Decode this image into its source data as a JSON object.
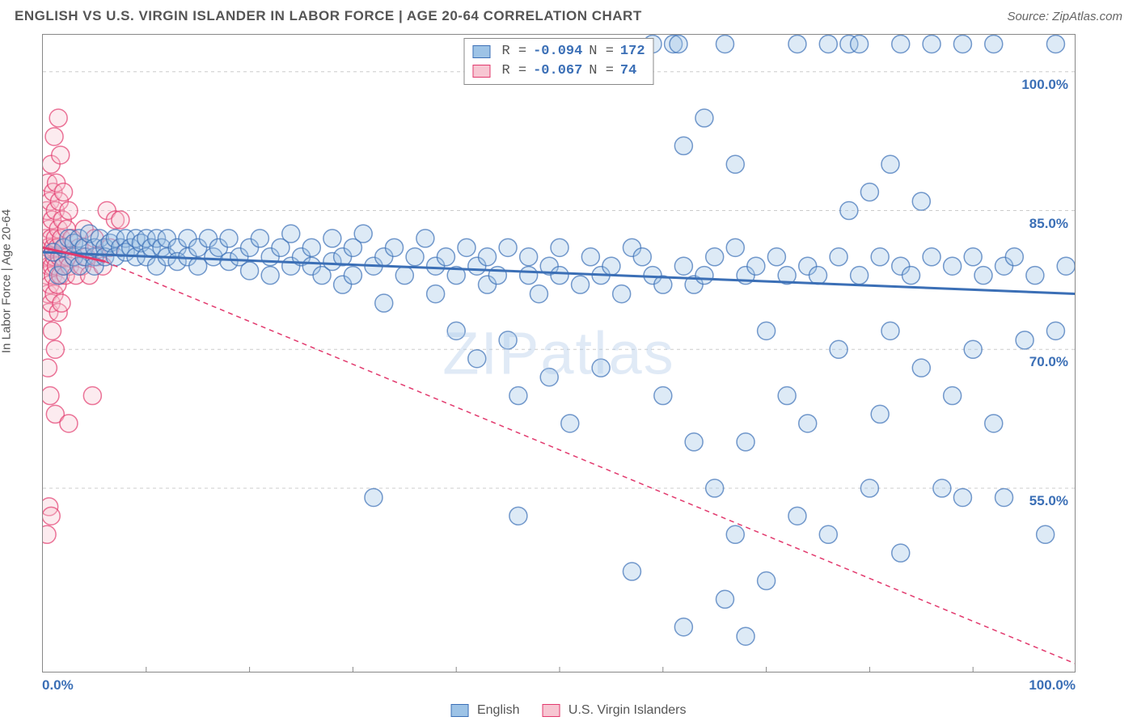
{
  "title": "ENGLISH VS U.S. VIRGIN ISLANDER IN LABOR FORCE | AGE 20-64 CORRELATION CHART",
  "source": "Source: ZipAtlas.com",
  "ylabel": "In Labor Force | Age 20-64",
  "watermark": "ZIPatlas",
  "chart": {
    "type": "scatter",
    "xlim": [
      0,
      100
    ],
    "ylim": [
      35,
      104
    ],
    "background_color": "#ffffff",
    "grid_color": "#cccccc",
    "border_color": "#888888",
    "watermark_color": "#a9c6e8",
    "watermark_opacity": 0.35,
    "yticks": [
      {
        "value": 55.0,
        "label": "55.0%"
      },
      {
        "value": 70.0,
        "label": "70.0%"
      },
      {
        "value": 85.0,
        "label": "85.0%"
      },
      {
        "value": 100.0,
        "label": "100.0%"
      }
    ],
    "xticks_minor": [
      10,
      20,
      30,
      40,
      50,
      60,
      70,
      80,
      90
    ],
    "xtick_labels": [
      {
        "value": 0,
        "label": "0.0%",
        "align": "left"
      },
      {
        "value": 100,
        "label": "100.0%",
        "align": "right"
      }
    ],
    "tick_label_color": "#3b6fb6",
    "marker_radius": 11,
    "marker_opacity_fill": 0.35,
    "marker_opacity_stroke": 0.7
  },
  "series": {
    "english": {
      "label": "English",
      "color_fill": "#9dc3e6",
      "color_stroke": "#3b6fb6",
      "R": "-0.094",
      "N": "172",
      "trend": {
        "x1": 0,
        "y1": 80.5,
        "x2": 100,
        "y2": 76.0,
        "dash": "none",
        "width": 3
      },
      "points": [
        [
          1,
          80.5
        ],
        [
          1.5,
          78
        ],
        [
          2,
          81
        ],
        [
          2,
          79
        ],
        [
          2.5,
          82
        ],
        [
          3,
          80
        ],
        [
          3,
          81.5
        ],
        [
          3.5,
          79
        ],
        [
          3.5,
          82
        ],
        [
          4,
          80
        ],
        [
          4,
          81
        ],
        [
          4.5,
          82.5
        ],
        [
          5,
          80
        ],
        [
          5,
          81
        ],
        [
          5,
          79
        ],
        [
          5.5,
          82
        ],
        [
          6,
          81
        ],
        [
          6,
          80
        ],
        [
          6.5,
          81.5
        ],
        [
          7,
          82
        ],
        [
          7,
          80
        ],
        [
          7.5,
          81
        ],
        [
          8,
          82
        ],
        [
          8,
          80.5
        ],
        [
          8.5,
          81
        ],
        [
          9,
          82
        ],
        [
          9,
          80
        ],
        [
          9.5,
          81.5
        ],
        [
          10,
          82
        ],
        [
          10,
          80
        ],
        [
          10.5,
          81
        ],
        [
          11,
          82
        ],
        [
          11,
          79
        ],
        [
          11.5,
          81
        ],
        [
          12,
          80
        ],
        [
          12,
          82
        ],
        [
          13,
          81
        ],
        [
          13,
          79.5
        ],
        [
          14,
          82
        ],
        [
          14,
          80
        ],
        [
          15,
          81
        ],
        [
          15,
          79
        ],
        [
          16,
          82
        ],
        [
          16.5,
          80
        ],
        [
          17,
          81
        ],
        [
          18,
          79.5
        ],
        [
          18,
          82
        ],
        [
          19,
          80
        ],
        [
          20,
          81
        ],
        [
          20,
          78.5
        ],
        [
          21,
          82
        ],
        [
          22,
          80
        ],
        [
          22,
          78
        ],
        [
          23,
          81
        ],
        [
          24,
          79
        ],
        [
          24,
          82.5
        ],
        [
          25,
          80
        ],
        [
          26,
          79
        ],
        [
          26,
          81
        ],
        [
          27,
          78
        ],
        [
          28,
          82
        ],
        [
          28,
          79.5
        ],
        [
          29,
          80
        ],
        [
          29,
          77
        ],
        [
          30,
          81
        ],
        [
          30,
          78
        ],
        [
          31,
          82.5
        ],
        [
          32,
          79
        ],
        [
          32,
          54
        ],
        [
          33,
          80
        ],
        [
          33,
          75
        ],
        [
          34,
          81
        ],
        [
          35,
          78
        ],
        [
          36,
          80
        ],
        [
          37,
          82
        ],
        [
          38,
          76
        ],
        [
          38,
          79
        ],
        [
          39,
          80
        ],
        [
          40,
          78
        ],
        [
          40,
          72
        ],
        [
          41,
          81
        ],
        [
          42,
          79
        ],
        [
          42,
          69
        ],
        [
          43,
          77
        ],
        [
          43,
          80
        ],
        [
          44,
          78
        ],
        [
          45,
          81
        ],
        [
          45,
          71
        ],
        [
          46,
          52
        ],
        [
          46,
          65
        ],
        [
          47,
          78
        ],
        [
          47,
          80
        ],
        [
          48,
          76
        ],
        [
          49,
          79
        ],
        [
          49,
          67
        ],
        [
          50,
          81
        ],
        [
          50,
          78
        ],
        [
          51,
          62
        ],
        [
          52,
          77
        ],
        [
          53,
          80
        ],
        [
          54,
          78
        ],
        [
          54,
          68
        ],
        [
          55,
          79
        ],
        [
          56,
          76
        ],
        [
          57,
          81
        ],
        [
          57,
          46
        ],
        [
          58,
          80
        ],
        [
          59,
          78
        ],
        [
          59,
          103
        ],
        [
          60,
          77
        ],
        [
          60,
          65
        ],
        [
          61,
          103
        ],
        [
          61.5,
          103
        ],
        [
          62,
          79
        ],
        [
          62,
          92
        ],
        [
          62,
          40
        ],
        [
          63,
          77
        ],
        [
          63,
          60
        ],
        [
          64,
          78
        ],
        [
          64,
          95
        ],
        [
          65,
          80
        ],
        [
          65,
          55
        ],
        [
          66,
          103
        ],
        [
          66,
          43
        ],
        [
          67,
          81
        ],
        [
          67,
          90
        ],
        [
          67,
          50
        ],
        [
          68,
          78
        ],
        [
          68,
          60
        ],
        [
          68,
          39
        ],
        [
          69,
          79
        ],
        [
          70,
          72
        ],
        [
          70,
          45
        ],
        [
          71,
          80
        ],
        [
          72,
          78
        ],
        [
          72,
          65
        ],
        [
          73,
          103
        ],
        [
          73,
          52
        ],
        [
          74,
          79
        ],
        [
          74,
          62
        ],
        [
          75,
          78
        ],
        [
          76,
          103
        ],
        [
          76,
          50
        ],
        [
          77,
          80
        ],
        [
          77,
          70
        ],
        [
          78,
          85
        ],
        [
          78,
          103
        ],
        [
          79,
          78
        ],
        [
          79,
          103
        ],
        [
          80,
          87
        ],
        [
          80,
          55
        ],
        [
          81,
          80
        ],
        [
          81,
          63
        ],
        [
          82,
          90
        ],
        [
          82,
          72
        ],
        [
          83,
          79
        ],
        [
          83,
          103
        ],
        [
          83,
          48
        ],
        [
          84,
          78
        ],
        [
          85,
          86
        ],
        [
          85,
          68
        ],
        [
          86,
          80
        ],
        [
          86,
          103
        ],
        [
          87,
          55
        ],
        [
          88,
          79
        ],
        [
          88,
          65
        ],
        [
          89,
          103
        ],
        [
          89,
          54
        ],
        [
          90,
          80
        ],
        [
          90,
          70
        ],
        [
          91,
          78
        ],
        [
          92,
          62
        ],
        [
          92,
          103
        ],
        [
          93,
          79
        ],
        [
          93,
          54
        ],
        [
          94,
          80
        ],
        [
          95,
          71
        ],
        [
          96,
          78
        ],
        [
          97,
          50
        ],
        [
          98,
          103
        ],
        [
          98,
          72
        ],
        [
          99,
          79
        ]
      ]
    },
    "usvi": {
      "label": "U.S. Virgin Islanders",
      "color_fill": "#f7c6d2",
      "color_stroke": "#e23a6e",
      "R": "-0.067",
      "N": "74",
      "trend_solid": {
        "x1": 0,
        "y1": 81,
        "x2": 6,
        "y2": 79.5,
        "dash": "none",
        "width": 3
      },
      "trend_dashed": {
        "x1": 6,
        "y1": 79.5,
        "x2": 100,
        "y2": 36,
        "dash": "6,5",
        "width": 1.5
      },
      "points": [
        [
          0.3,
          80
        ],
        [
          0.3,
          82
        ],
        [
          0.4,
          78
        ],
        [
          0.4,
          85
        ],
        [
          0.5,
          81
        ],
        [
          0.5,
          76
        ],
        [
          0.5,
          88
        ],
        [
          0.6,
          79
        ],
        [
          0.6,
          83
        ],
        [
          0.6,
          74
        ],
        [
          0.7,
          80
        ],
        [
          0.7,
          86
        ],
        [
          0.7,
          77
        ],
        [
          0.8,
          82
        ],
        [
          0.8,
          90
        ],
        [
          0.8,
          75
        ],
        [
          0.9,
          79
        ],
        [
          0.9,
          84
        ],
        [
          0.9,
          72
        ],
        [
          1.0,
          81
        ],
        [
          1.0,
          87
        ],
        [
          1.0,
          78
        ],
        [
          1.1,
          80
        ],
        [
          1.1,
          93
        ],
        [
          1.1,
          76
        ],
        [
          1.2,
          82
        ],
        [
          1.2,
          85
        ],
        [
          1.2,
          70
        ],
        [
          1.3,
          79
        ],
        [
          1.3,
          88
        ],
        [
          1.4,
          81
        ],
        [
          1.4,
          77
        ],
        [
          1.5,
          83
        ],
        [
          1.5,
          74
        ],
        [
          1.5,
          95
        ],
        [
          1.6,
          80
        ],
        [
          1.6,
          86
        ],
        [
          1.7,
          78
        ],
        [
          1.7,
          91
        ],
        [
          1.8,
          82
        ],
        [
          1.8,
          75
        ],
        [
          1.9,
          80
        ],
        [
          1.9,
          84
        ],
        [
          2.0,
          79
        ],
        [
          2.0,
          87
        ],
        [
          2.1,
          81
        ],
        [
          2.2,
          78
        ],
        [
          2.3,
          83
        ],
        [
          2.4,
          80
        ],
        [
          2.5,
          85
        ],
        [
          2.6,
          79
        ],
        [
          2.8,
          82
        ],
        [
          3.0,
          80
        ],
        [
          3.2,
          78
        ],
        [
          3.5,
          81
        ],
        [
          3.8,
          79
        ],
        [
          4.0,
          83
        ],
        [
          4.2,
          80
        ],
        [
          4.5,
          78
        ],
        [
          5.0,
          82
        ],
        [
          5.3,
          80
        ],
        [
          5.8,
          79
        ],
        [
          6.2,
          85
        ],
        [
          6.5,
          81
        ],
        [
          7.0,
          84
        ],
        [
          0.5,
          68
        ],
        [
          0.7,
          65
        ],
        [
          0.6,
          53
        ],
        [
          0.8,
          52
        ],
        [
          0.4,
          50
        ],
        [
          1.2,
          63
        ],
        [
          2.5,
          62
        ],
        [
          4.8,
          65
        ],
        [
          7.5,
          84
        ]
      ]
    }
  },
  "stats_legend": {
    "R_label": "R =",
    "N_label": "N =",
    "value_color": "#3b6fb6",
    "border_color": "#888888"
  }
}
